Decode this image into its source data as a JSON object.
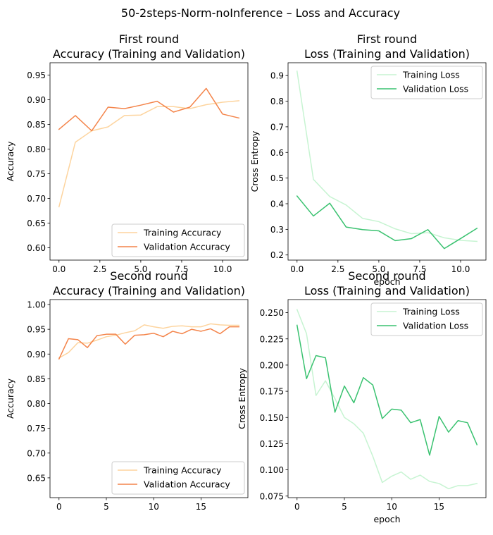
{
  "figure": {
    "suptitle": "50-2steps-Norm-noInference – Loss and Accuracy",
    "colors": {
      "training_accuracy": "#fdd49e",
      "validation_accuracy": "#f4844a",
      "training_loss": "#c7f4d2",
      "validation_loss": "#3ac270"
    }
  },
  "chart_data": [
    {
      "id": "acc1",
      "type": "line",
      "title": "First round\nAccuracy (Training and Validation)",
      "xlabel": "",
      "ylabel": "Accuracy",
      "xlim": [
        -0.55,
        11.55
      ],
      "ylim": [
        0.575,
        0.975
      ],
      "xticks": [
        0,
        2.5,
        5,
        7.5,
        10
      ],
      "xtick_labels": [
        "0.0",
        "2.5",
        "5.0",
        "7.5",
        "10.0"
      ],
      "yticks": [
        0.6,
        0.65,
        0.7,
        0.75,
        0.8,
        0.85,
        0.9,
        0.95
      ],
      "ytick_labels": [
        "0.60",
        "0.65",
        "0.70",
        "0.75",
        "0.80",
        "0.85",
        "0.90",
        "0.95"
      ],
      "legend_position": "lower-right",
      "x": [
        0,
        1,
        2,
        3,
        4,
        5,
        6,
        7,
        8,
        9,
        10,
        11
      ],
      "series": [
        {
          "name": "Training Accuracy",
          "color": "#fdd49e",
          "values": [
            0.683,
            0.814,
            0.837,
            0.845,
            0.868,
            0.869,
            0.886,
            0.886,
            0.882,
            0.89,
            0.895,
            0.898
          ]
        },
        {
          "name": "Validation Accuracy",
          "color": "#f4844a",
          "values": [
            0.84,
            0.868,
            0.837,
            0.885,
            0.882,
            0.889,
            0.897,
            0.875,
            0.885,
            0.923,
            0.871,
            0.863
          ]
        }
      ]
    },
    {
      "id": "loss1",
      "type": "line",
      "title": "First round\nLoss (Training and Validation)",
      "xlabel": "epoch",
      "ylabel": "Cross Entropy",
      "xlim": [
        -0.55,
        11.55
      ],
      "ylim": [
        0.18,
        0.95
      ],
      "xticks": [
        0,
        2.5,
        5,
        7.5,
        10
      ],
      "xtick_labels": [
        "0.0",
        "2.5",
        "5.0",
        "7.5",
        "10.0"
      ],
      "yticks": [
        0.2,
        0.3,
        0.4,
        0.5,
        0.6,
        0.7,
        0.8,
        0.9
      ],
      "ytick_labels": [
        "0.2",
        "0.3",
        "0.4",
        "0.5",
        "0.6",
        "0.7",
        "0.8",
        "0.9"
      ],
      "legend_position": "upper-right",
      "x": [
        0,
        1,
        2,
        3,
        4,
        5,
        6,
        7,
        8,
        9,
        10,
        11
      ],
      "series": [
        {
          "name": "Training Loss",
          "color": "#c7f4d2",
          "values": [
            0.917,
            0.495,
            0.428,
            0.395,
            0.343,
            0.33,
            0.302,
            0.283,
            0.287,
            0.267,
            0.257,
            0.253
          ]
        },
        {
          "name": "Validation Loss",
          "color": "#3ac270",
          "values": [
            0.43,
            0.352,
            0.402,
            0.309,
            0.299,
            0.294,
            0.256,
            0.264,
            0.299,
            0.225,
            0.264,
            0.304
          ]
        }
      ]
    },
    {
      "id": "acc2",
      "type": "line",
      "title": "Second round\nAccuracy (Training and Validation)",
      "xlabel": "",
      "ylabel": "Accuracy",
      "xlim": [
        -0.95,
        19.95
      ],
      "ylim": [
        0.61,
        1.01
      ],
      "xticks": [
        0,
        5,
        10,
        15
      ],
      "xtick_labels": [
        "0",
        "5",
        "10",
        "15"
      ],
      "yticks": [
        0.65,
        0.7,
        0.75,
        0.8,
        0.85,
        0.9,
        0.95,
        1.0
      ],
      "ytick_labels": [
        "0.65",
        "0.70",
        "0.75",
        "0.80",
        "0.85",
        "0.90",
        "0.95",
        "1.00"
      ],
      "legend_position": "lower-right",
      "x": [
        0,
        1,
        2,
        3,
        4,
        5,
        6,
        7,
        8,
        9,
        10,
        11,
        12,
        13,
        14,
        15,
        16,
        17,
        18,
        19
      ],
      "series": [
        {
          "name": "Training Accuracy",
          "color": "#fdd49e",
          "values": [
            0.892,
            0.903,
            0.923,
            0.922,
            0.928,
            0.935,
            0.938,
            0.943,
            0.947,
            0.959,
            0.955,
            0.952,
            0.956,
            0.957,
            0.955,
            0.955,
            0.961,
            0.959,
            0.958,
            0.958
          ]
        },
        {
          "name": "Validation Accuracy",
          "color": "#f4844a",
          "values": [
            0.89,
            0.931,
            0.929,
            0.913,
            0.937,
            0.94,
            0.94,
            0.92,
            0.938,
            0.939,
            0.942,
            0.935,
            0.946,
            0.941,
            0.95,
            0.946,
            0.951,
            0.941,
            0.955,
            0.955
          ]
        }
      ]
    },
    {
      "id": "loss2",
      "type": "line",
      "title": "Second round\nLoss (Training and Validation)",
      "xlabel": "epoch",
      "ylabel": "Cross Entropy",
      "xlim": [
        -0.95,
        19.95
      ],
      "ylim": [
        0.0735,
        0.2625
      ],
      "xticks": [
        0,
        5,
        10,
        15
      ],
      "xtick_labels": [
        "0",
        "5",
        "10",
        "15"
      ],
      "yticks": [
        0.075,
        0.1,
        0.125,
        0.15,
        0.175,
        0.2,
        0.225,
        0.25
      ],
      "ytick_labels": [
        "0.075",
        "0.100",
        "0.125",
        "0.150",
        "0.175",
        "0.200",
        "0.225",
        "0.250"
      ],
      "legend_position": "upper-right",
      "x": [
        0,
        1,
        2,
        3,
        4,
        5,
        6,
        7,
        8,
        9,
        10,
        11,
        12,
        13,
        14,
        15,
        16,
        17,
        18,
        19
      ],
      "series": [
        {
          "name": "Training Loss",
          "color": "#c7f4d2",
          "values": [
            0.253,
            0.23,
            0.171,
            0.185,
            0.168,
            0.15,
            0.144,
            0.135,
            0.113,
            0.088,
            0.094,
            0.098,
            0.091,
            0.095,
            0.089,
            0.087,
            0.082,
            0.085,
            0.085,
            0.087
          ]
        },
        {
          "name": "Validation Loss",
          "color": "#3ac270",
          "values": [
            0.238,
            0.187,
            0.209,
            0.207,
            0.155,
            0.18,
            0.164,
            0.188,
            0.181,
            0.149,
            0.158,
            0.157,
            0.145,
            0.148,
            0.114,
            0.151,
            0.136,
            0.147,
            0.145,
            0.124
          ]
        }
      ]
    }
  ]
}
